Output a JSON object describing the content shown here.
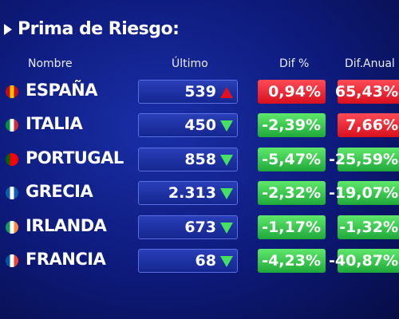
{
  "header": {
    "title": "Prima de Riesgo:"
  },
  "table": {
    "columns": [
      "Nombre",
      "Último",
      "Dif %",
      "Dif.Anual %"
    ],
    "rows": [
      {
        "name": "ESPAÑA",
        "ultimo": "539",
        "trend": "up",
        "dif": "0,94%",
        "dif_color": "red",
        "anual": "65,43%",
        "anual_color": "red"
      },
      {
        "name": "ITALIA",
        "ultimo": "450",
        "trend": "down",
        "dif": "-2,39%",
        "dif_color": "green",
        "anual": "7,66%",
        "anual_color": "red"
      },
      {
        "name": "PORTUGAL",
        "ultimo": "858",
        "trend": "down",
        "dif": "-5,47%",
        "dif_color": "green",
        "anual": "-25,59%",
        "anual_color": "green"
      },
      {
        "name": "GRECIA",
        "ultimo": "2.313",
        "trend": "down",
        "dif": "-2,32%",
        "dif_color": "green",
        "anual": "-19,07%",
        "anual_color": "green"
      },
      {
        "name": "IRLANDA",
        "ultimo": "673",
        "trend": "down",
        "dif": "-1,17%",
        "dif_color": "green",
        "anual": "-1,32%",
        "anual_color": "green"
      },
      {
        "name": "FRANCIA",
        "ultimo": "68",
        "trend": "down",
        "dif": "-4,23%",
        "dif_color": "green",
        "anual": "-40,87%",
        "anual_color": "green"
      }
    ]
  }
}
